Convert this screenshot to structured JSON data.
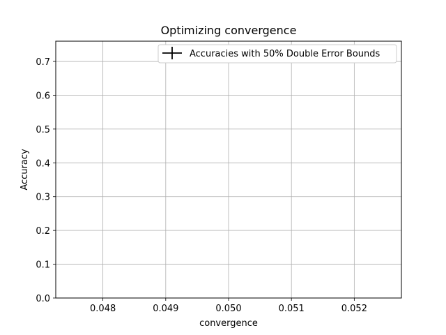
{
  "chart_data": {
    "type": "line",
    "title": "Optimizing convergence",
    "xlabel": "convergence",
    "ylabel": "Accuracy",
    "xlim": [
      0.04725,
      0.05275
    ],
    "ylim": [
      0,
      0.76
    ],
    "x_ticks": [
      "0.048",
      "0.049",
      "0.050",
      "0.051",
      "0.052"
    ],
    "x_tick_values": [
      0.048,
      0.049,
      0.05,
      0.051,
      0.052
    ],
    "y_ticks": [
      "0.0",
      "0.1",
      "0.2",
      "0.3",
      "0.4",
      "0.5",
      "0.6",
      "0.7"
    ],
    "y_tick_values": [
      0.0,
      0.1,
      0.2,
      0.3,
      0.4,
      0.5,
      0.6,
      0.7
    ],
    "grid": true,
    "legend_position": "top-right",
    "series": [
      {
        "name": "Accuracies with 50% Double Error Bounds",
        "color": "#000000",
        "x": [],
        "y": []
      }
    ]
  }
}
